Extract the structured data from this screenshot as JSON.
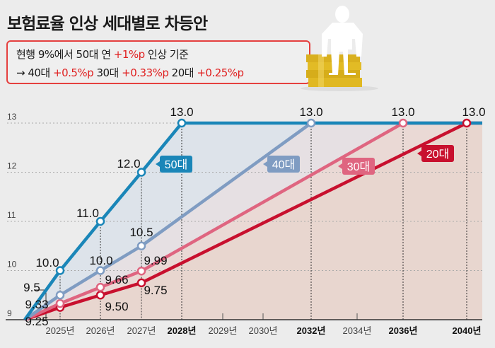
{
  "title": "보험료율 인상 세대별로 차등안",
  "note": {
    "line1": [
      {
        "t": "현행 9%에서 50대 연 ",
        "red": false
      },
      {
        "t": "+1%p",
        "red": true
      },
      {
        "t": " 인상 기준",
        "red": false
      }
    ],
    "line2": [
      {
        "t": "→ 40대 ",
        "red": false
      },
      {
        "t": "+0.5%p",
        "red": true
      },
      {
        "t": " 30대 ",
        "red": false
      },
      {
        "t": "+0.33%p",
        "red": true
      },
      {
        "t": " 20대 ",
        "red": false
      },
      {
        "t": "+0.25%p",
        "red": true
      }
    ]
  },
  "illustration": "person-sitting-on-coin-stack",
  "chart_data": {
    "type": "line",
    "title": "",
    "xlabel": "",
    "ylabel": "",
    "ylim": [
      9,
      13
    ],
    "y_ticks": [
      "9",
      "10",
      "11",
      "12",
      "13"
    ],
    "x_ticks": [
      {
        "year": 2025,
        "label": "2025년",
        "bold": false
      },
      {
        "year": 2026,
        "label": "2026년",
        "bold": false
      },
      {
        "year": 2027,
        "label": "2027년",
        "bold": false
      },
      {
        "year": 2028,
        "label": "2028년",
        "bold": true
      },
      {
        "year": 2029,
        "label": "2029년",
        "bold": false
      },
      {
        "year": 2030,
        "label": "2030년",
        "bold": false
      },
      {
        "year": 2032,
        "label": "2032년",
        "bold": true
      },
      {
        "year": 2034,
        "label": "2034년",
        "bold": false
      },
      {
        "year": 2036,
        "label": "2036년",
        "bold": true
      },
      {
        "year": 2040,
        "label": "2040년",
        "bold": true
      }
    ],
    "grid": true,
    "series": [
      {
        "name": "50대",
        "color": "#1a86b8",
        "points": [
          [
            2024,
            9.0,
            ""
          ],
          [
            2025,
            10.0,
            "10.0"
          ],
          [
            2026,
            11.0,
            "11.0"
          ],
          [
            2027,
            12.0,
            "12.0"
          ],
          [
            2028,
            13.0,
            "13.0"
          ],
          [
            2040,
            13.0,
            ""
          ]
        ]
      },
      {
        "name": "40대",
        "color": "#7f9cc2",
        "points": [
          [
            2024,
            9.0,
            ""
          ],
          [
            2025,
            9.5,
            "9.5"
          ],
          [
            2026,
            10.0,
            "10.0"
          ],
          [
            2027,
            10.5,
            "10.5"
          ],
          [
            2032,
            13.0,
            "13.0"
          ],
          [
            2040,
            13.0,
            ""
          ]
        ]
      },
      {
        "name": "30대",
        "color": "#df6580",
        "points": [
          [
            2024,
            9.0,
            ""
          ],
          [
            2025,
            9.33,
            "9.33"
          ],
          [
            2026,
            9.66,
            "9.66"
          ],
          [
            2027,
            9.99,
            "9.99"
          ],
          [
            2036,
            13.0,
            "13.0"
          ],
          [
            2040,
            13.0,
            ""
          ]
        ]
      },
      {
        "name": "20대",
        "color": "#c8102e",
        "points": [
          [
            2024,
            9.0,
            ""
          ],
          [
            2025,
            9.25,
            "9.25"
          ],
          [
            2026,
            9.5,
            "9.50"
          ],
          [
            2027,
            9.75,
            "9.75"
          ],
          [
            2040,
            13.0,
            "13.0"
          ]
        ]
      }
    ]
  }
}
